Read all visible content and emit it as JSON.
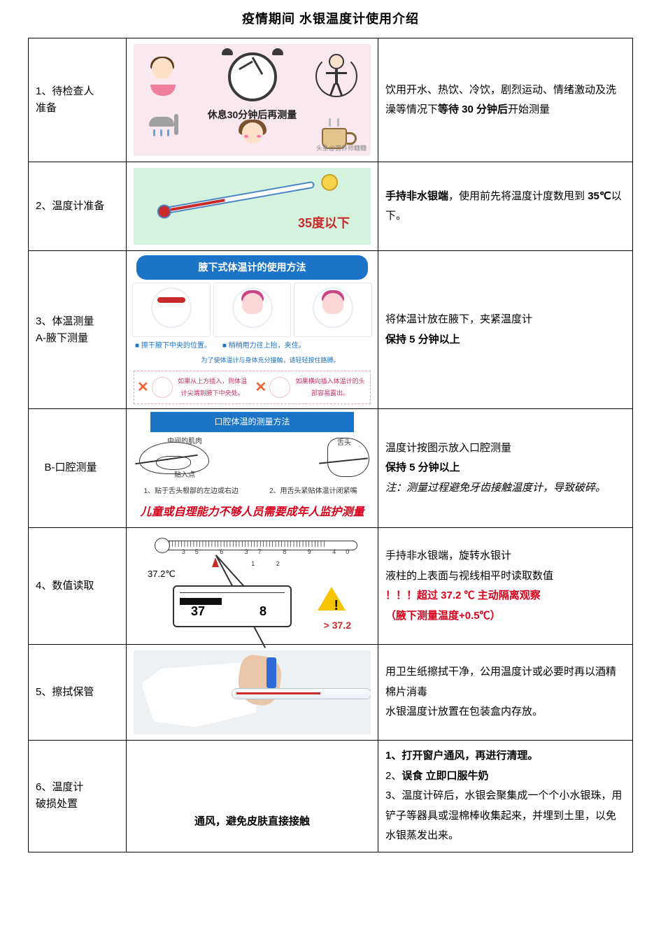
{
  "title": "疫情期间 水银温度计使用介绍",
  "rows": {
    "r1": {
      "label": "1、待检查人\n准备",
      "image": {
        "caption": "休息30分钟后再测量",
        "credit": "头条@营养师糖糖"
      },
      "desc_pre": "饮用开水、热饮、冷饮，剧烈运动、情绪激动及洗澡等情况下",
      "desc_bold": "等待 30 分钟后",
      "desc_post": "开始测量"
    },
    "r2": {
      "label": "2、温度计准备",
      "image": {
        "label35": "35度以下"
      },
      "desc_bold1": "手持非水银端",
      "desc_mid": "，使用前先将温度计度数甩到 ",
      "desc_bold2": "35℃",
      "desc_post": "以下。"
    },
    "r3": {
      "label": "3、体温测量\n   A-腋下测量",
      "image": {
        "banner": "腋下式体温计的使用方法",
        "note_a": "擦干腋下中央的位置。",
        "note_b": "稍稍用力往上抬，夹住。",
        "note_sub": "为了使体温计与身体充分接触，请轻轻按住胳膊。",
        "wrong_a": "如果从上方插入，则体温计尖端到腋下中央处。",
        "wrong_b": "如果横向插入体温计的头部容易露出。"
      },
      "desc_line1": "将体温计放在腋下，夹紧温度计",
      "desc_bold": "保持 5 分钟以上"
    },
    "r4": {
      "label": "   B-口腔测量",
      "image": {
        "banner": "口腔体温的测量方法",
        "t_mid": "中间的肌肉",
        "t_tongue": "舌头",
        "t_point": "贴入点",
        "cap1": "1、贴于舌头根部的左边或右边",
        "cap2": "2、用舌头紧贴体温计闭紧嘴",
        "warn": "儿童或自理能力不够人员需要成年人监护测量"
      },
      "desc_line1": "温度计按图示放入口腔测量",
      "desc_bold": "保持 5 分钟以上",
      "desc_note": "注：测量过程避免牙齿接触温度计，导致破碎。"
    },
    "r5": {
      "label": "4、数值读取",
      "image": {
        "t372": "37.2℃",
        "scale_nums": "35 6 37 8 9 40 1 2",
        "zoom37": "37",
        "zoom8": "8",
        "gt": "> 37.2"
      },
      "desc_l1": "手持非水银端，旋转水银计",
      "desc_l2": "液柱的上表面与视线相平时读取数值",
      "desc_red1": "！！！超过 37.2 ℃ 主动隔离观察",
      "desc_red2": "（腋下测量温度+0.5℃）"
    },
    "r6": {
      "label": "5、擦拭保管",
      "desc_l1": "用卫生纸擦拭干净，公用温度计或必要时再以酒精棉片消毒",
      "desc_l2": "水银温度计放置在包装盒内存放。"
    },
    "r7": {
      "label": "6、温度计\n    破损处置",
      "image_caption": "通风，避免皮肤直接接触",
      "d1_pre": "1、",
      "d1_bold": "打开窗户通风，再进行清理。",
      "d2_pre": "2、",
      "d2_bold": "误食 立即口服牛奶",
      "d3": "3、温度计碎后，水银会聚集成一个个小水银珠，用铲子等器具或湿棉棒收集起来，并埋到土里，以免水银蒸发出来。"
    }
  }
}
